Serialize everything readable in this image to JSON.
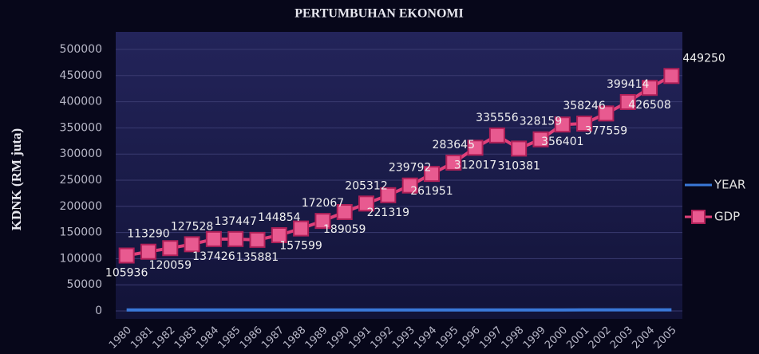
{
  "chart_data": {
    "type": "line",
    "title": "PERTUMBUHAN EKONOMI",
    "y_label": "KDNK (RM juta)",
    "categories": [
      "1980",
      "1981",
      "1982",
      "1983",
      "1984",
      "1985",
      "1986",
      "1987",
      "1988",
      "1989",
      "1990",
      "1991",
      "1992",
      "1993",
      "1994",
      "1995",
      "1996",
      "1997",
      "1998",
      "1999",
      "2000",
      "2001",
      "2002",
      "2003",
      "2004",
      "2005"
    ],
    "series": [
      {
        "name": "YEAR",
        "color": "#3a78d8",
        "values": [
          1980,
          1981,
          1982,
          1983,
          1984,
          1985,
          1986,
          1987,
          1988,
          1989,
          1990,
          1991,
          1992,
          1993,
          1994,
          1995,
          1996,
          1997,
          1998,
          1999,
          2000,
          2001,
          2002,
          2003,
          2004,
          2005
        ]
      },
      {
        "name": "GDP",
        "color": "#e0407a",
        "values": [
          105936,
          113290,
          120059,
          127528,
          137426,
          137447,
          135881,
          144854,
          157599,
          172067,
          189059,
          205312,
          221319,
          239792,
          261951,
          283645,
          312017,
          335556,
          310381,
          328159,
          356401,
          358246,
          377559,
          399414,
          426508,
          449250
        ],
        "markers": "square",
        "data_labels": true
      }
    ],
    "ylim": [
      0,
      500000
    ],
    "yticks": [
      0,
      50000,
      100000,
      150000,
      200000,
      250000,
      300000,
      350000,
      400000,
      450000,
      500000
    ],
    "grid": true,
    "legend": "right"
  }
}
